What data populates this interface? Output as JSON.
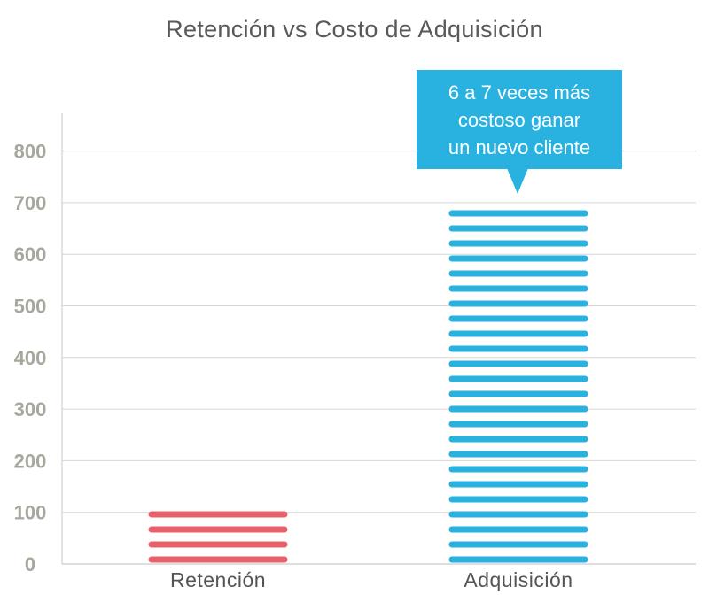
{
  "chart_data": {
    "type": "bar",
    "title": "Retención vs Costo de Adquisición",
    "xlabel": "",
    "ylabel": "",
    "categories": [
      "Retención",
      "Adquisición"
    ],
    "values": [
      100,
      700
    ],
    "ylim": [
      0,
      800
    ],
    "yticks": [
      0,
      100,
      200,
      300,
      400,
      500,
      600,
      700,
      800
    ],
    "grid": true,
    "bar_colors": [
      "#e8616a",
      "#29b1e0"
    ],
    "annotation": {
      "lines": [
        "6 a 7 veces más",
        "costoso ganar",
        "un nuevo cliente"
      ],
      "target_category": "Adquisición",
      "color": "#29b1e0"
    }
  }
}
